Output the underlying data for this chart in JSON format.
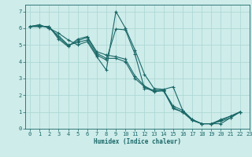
{
  "xlabel": "Humidex (Indice chaleur)",
  "bg_color": "#ceecea",
  "grid_color": "#aed8d4",
  "line_color": "#1a6868",
  "xlim": [
    -0.5,
    23
  ],
  "ylim": [
    0,
    7.4
  ],
  "xticks": [
    0,
    1,
    2,
    3,
    4,
    5,
    6,
    7,
    8,
    9,
    10,
    11,
    12,
    13,
    14,
    15,
    16,
    17,
    18,
    19,
    20,
    21,
    22,
    23
  ],
  "yticks": [
    0,
    1,
    2,
    3,
    4,
    5,
    6,
    7
  ],
  "series": [
    {
      "x": [
        0,
        1,
        2,
        3,
        4,
        5,
        6,
        7,
        8,
        9,
        10,
        11,
        12,
        13,
        14,
        15,
        16,
        17,
        18,
        19,
        20,
        21,
        22
      ],
      "y": [
        6.1,
        6.2,
        6.0,
        5.7,
        5.3,
        5.0,
        5.2,
        4.3,
        3.5,
        7.0,
        6.0,
        4.7,
        3.25,
        2.4,
        2.35,
        2.5,
        1.1,
        0.55,
        0.3,
        0.3,
        0.3,
        0.65,
        1.0
      ]
    },
    {
      "x": [
        0,
        1,
        2,
        3,
        4,
        5,
        6,
        7,
        8,
        9,
        10,
        11,
        12,
        13,
        14,
        15,
        16,
        17,
        18,
        19,
        20,
        21,
        22
      ],
      "y": [
        6.1,
        6.2,
        6.0,
        5.55,
        5.0,
        5.15,
        5.3,
        4.4,
        4.1,
        5.95,
        5.9,
        4.45,
        2.4,
        2.3,
        2.3,
        1.35,
        1.1,
        0.55,
        0.3,
        0.3,
        0.55,
        0.75,
        1.0
      ]
    },
    {
      "x": [
        0,
        1,
        2,
        3,
        4,
        5,
        6,
        7,
        8,
        9,
        10,
        11,
        12,
        13,
        14,
        15,
        16,
        17,
        18,
        19,
        20,
        21,
        22
      ],
      "y": [
        6.1,
        6.1,
        6.1,
        5.45,
        4.95,
        5.25,
        5.45,
        4.5,
        4.2,
        4.2,
        4.0,
        3.0,
        2.5,
        2.2,
        2.3,
        1.2,
        1.0,
        0.5,
        0.3,
        0.3,
        0.5,
        0.75,
        1.0
      ]
    },
    {
      "x": [
        0,
        1,
        2,
        3,
        4,
        5,
        6,
        7,
        8,
        9,
        10,
        11,
        12,
        13,
        14,
        15,
        16,
        17,
        18,
        19,
        20,
        21,
        22
      ],
      "y": [
        6.1,
        6.1,
        6.1,
        5.35,
        4.9,
        5.35,
        5.5,
        4.6,
        4.4,
        4.3,
        4.15,
        3.15,
        2.55,
        2.25,
        2.25,
        1.25,
        1.0,
        0.5,
        0.3,
        0.3,
        0.45,
        0.65,
        1.0
      ]
    }
  ]
}
